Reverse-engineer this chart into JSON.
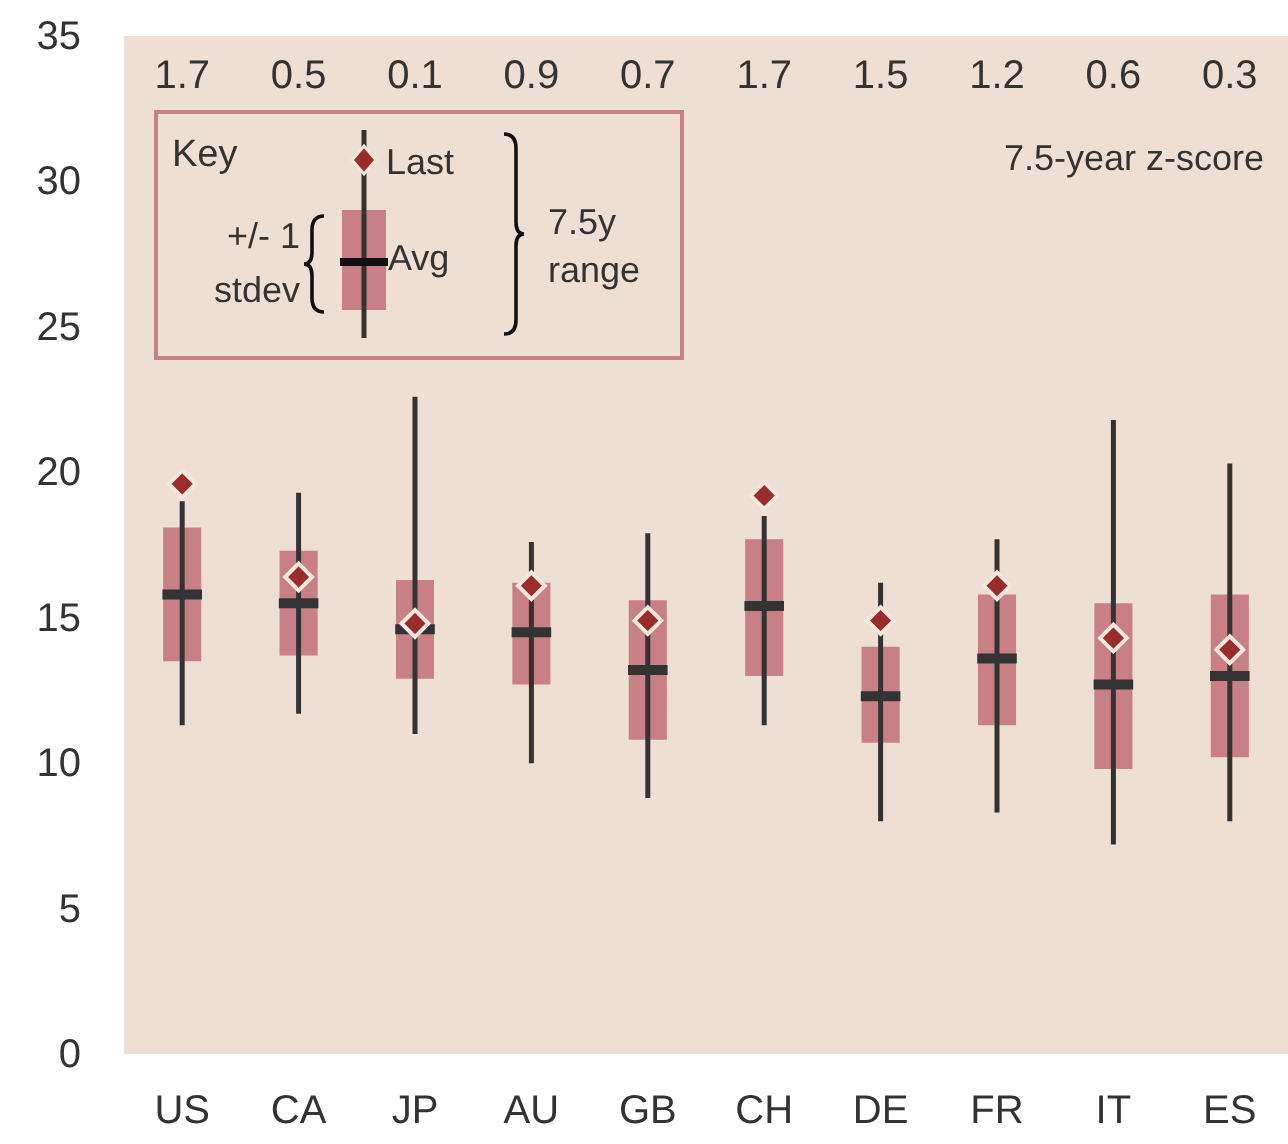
{
  "chart_data": {
    "type": "box",
    "categories": [
      "US",
      "CA",
      "JP",
      "AU",
      "GB",
      "CH",
      "DE",
      "FR",
      "IT",
      "ES"
    ],
    "ylim": [
      0,
      35
    ],
    "yticks": [
      0,
      5,
      10,
      15,
      20,
      25,
      30,
      35
    ],
    "legend": "top left",
    "legend_title": "Key",
    "series": [
      {
        "color": "#c97f86",
        "boxes": [
          {
            "low": 11.3,
            "q1": 13.5,
            "median": 15.8,
            "q3": 18.1,
            "high": 19.0
          },
          {
            "low": 11.7,
            "q1": 13.7,
            "median": 15.5,
            "q3": 17.3,
            "high": 19.3
          },
          {
            "low": 11.0,
            "q1": 12.9,
            "median": 14.6,
            "q3": 16.3,
            "high": 22.6
          },
          {
            "low": 10.0,
            "q1": 12.7,
            "median": 14.5,
            "q3": 16.2,
            "high": 17.6
          },
          {
            "low": 8.8,
            "q1": 10.8,
            "median": 13.2,
            "q3": 15.6,
            "high": 17.9
          },
          {
            "low": 11.3,
            "q1": 13.0,
            "median": 15.4,
            "q3": 17.7,
            "high": 18.5
          },
          {
            "low": 8.0,
            "q1": 10.7,
            "median": 12.3,
            "q3": 14.0,
            "high": 16.2
          },
          {
            "low": 8.3,
            "q1": 11.3,
            "median": 13.6,
            "q3": 15.8,
            "high": 17.7
          },
          {
            "low": 7.2,
            "q1": 9.8,
            "median": 12.7,
            "q3": 15.5,
            "high": 21.8
          },
          {
            "low": 8.0,
            "q1": 10.2,
            "median": 13.0,
            "q3": 15.8,
            "high": 20.3
          }
        ]
      },
      {
        "type": "scatter",
        "name": "Last",
        "color": "#9b2c2c",
        "marker": "diamond",
        "x": [
          "US",
          "CA",
          "JP",
          "AU",
          "GB",
          "CH",
          "DE",
          "FR",
          "IT",
          "ES"
        ],
        "values": [
          19.6,
          16.4,
          14.8,
          16.1,
          14.9,
          19.2,
          14.9,
          16.1,
          14.3,
          13.9
        ]
      }
    ],
    "annotations": [
      "Avg",
      "+/- 1 stdev",
      "7.5y range",
      "7.5-year z-score",
      "1.7",
      "0.5",
      "0.1",
      "0.9",
      "0.7",
      "1.7",
      "1.5",
      "1.2",
      "0.6",
      "0.3"
    ]
  }
}
